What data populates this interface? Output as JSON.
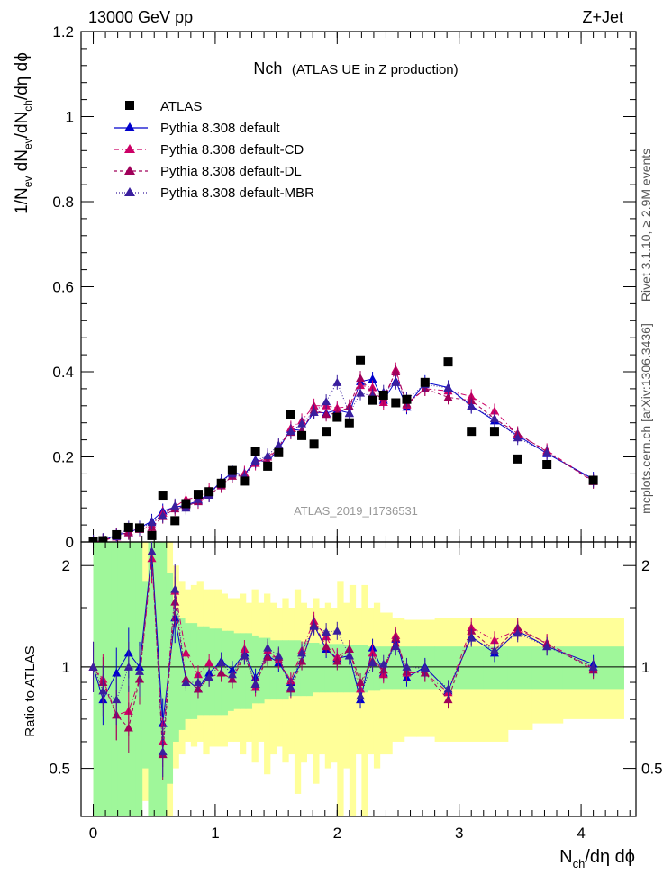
{
  "header": {
    "energy": "13000 GeV pp",
    "process": "Z+Jet",
    "side_rivet": "Rivet 3.1.10, ≥ 2.9M events",
    "side_mcplots": "mcplots.cern.ch [arXiv:1306.3436]",
    "watermark": "ATLAS_2019_I1736531"
  },
  "main_title": {
    "main": "Nch",
    "sub": "(ATLAS UE in Z production)"
  },
  "axes": {
    "ylabel_main": "1/N_ev dN_ev/dN_ch/dη dϕ",
    "ylabel_ratio": "Ratio to ATLAS",
    "xlabel": "N_ch/dη dϕ"
  },
  "legend": [
    "ATLAS",
    "Pythia 8.308 default",
    "Pythia 8.308 default-CD",
    "Pythia 8.308 default-DL",
    "Pythia 8.308 default-MBR"
  ],
  "colors": {
    "data": "#000000",
    "default": "#0000cc",
    "cd": "#cc0066",
    "dl": "#a0005a",
    "mbr": "#3a1f9e",
    "band_inner": "#9ff79a",
    "band_outer": "#ffff99"
  },
  "chart_data": [
    {
      "type": "scatter",
      "title": "Nch",
      "xlim": [
        -0.1,
        4.45
      ],
      "ylim": [
        0,
        1.2
      ],
      "yticks": [
        0,
        0.2,
        0.4,
        0.6,
        0.8,
        1,
        1.2
      ],
      "ytick_labels": [
        "0",
        "0.2",
        "0.4",
        "0.6",
        "0.8",
        "1",
        "1.2"
      ],
      "x": [
        0,
        0.08,
        0.19,
        0.29,
        0.38,
        0.48,
        0.57,
        0.67,
        0.76,
        0.86,
        0.95,
        1.05,
        1.14,
        1.24,
        1.33,
        1.43,
        1.52,
        1.62,
        1.71,
        1.81,
        1.91,
        2.0,
        2.1,
        2.19,
        2.29,
        2.38,
        2.48,
        2.57,
        2.72,
        2.91,
        3.1,
        3.29,
        3.48,
        3.72,
        4.1
      ],
      "series": [
        {
          "name": "ATLAS",
          "values": [
            0,
            0.003,
            0.017,
            0.034,
            0.033,
            0.015,
            0.11,
            0.05,
            0.09,
            0.112,
            0.118,
            0.138,
            0.168,
            0.143,
            0.213,
            0.178,
            0.21,
            0.3,
            0.25,
            0.23,
            0.26,
            0.293,
            0.28,
            0.428,
            0.333,
            0.345,
            0.327,
            0.335,
            0.375,
            0.423,
            0.26,
            0.26,
            0.195,
            0.182,
            0.145
          ]
        },
        {
          "name": "Pythia 8.308 default",
          "values": [
            0,
            0.003,
            0.017,
            0.022,
            0.033,
            0.049,
            0.073,
            0.082,
            0.086,
            0.097,
            0.113,
            0.143,
            0.163,
            0.158,
            0.193,
            0.188,
            0.218,
            0.265,
            0.262,
            0.305,
            0.303,
            0.31,
            0.303,
            0.377,
            0.383,
            0.333,
            0.378,
            0.317,
            0.375,
            0.363,
            0.32,
            0.285,
            0.25,
            0.208,
            0.148
          ]
        },
        {
          "name": "Pythia 8.308 default-CD",
          "values": [
            0,
            0.003,
            0.012,
            0.025,
            0.03,
            0.04,
            0.068,
            0.083,
            0.1,
            0.105,
            0.122,
            0.133,
            0.155,
            0.162,
            0.185,
            0.2,
            0.22,
            0.268,
            0.285,
            0.32,
            0.32,
            0.315,
            0.318,
            0.368,
            0.363,
            0.328,
            0.405,
            0.322,
            0.36,
            0.355,
            0.342,
            0.308,
            0.252,
            0.215,
            0.143
          ]
        },
        {
          "name": "Pythia 8.308 default-DL",
          "values": [
            0,
            0.003,
            0.015,
            0.022,
            0.031,
            0.034,
            0.06,
            0.078,
            0.083,
            0.095,
            0.11,
            0.132,
            0.155,
            0.155,
            0.19,
            0.19,
            0.225,
            0.258,
            0.262,
            0.31,
            0.3,
            0.302,
            0.318,
            0.385,
            0.348,
            0.338,
            0.4,
            0.325,
            0.36,
            0.34,
            0.332,
            0.29,
            0.255,
            0.212,
            0.142
          ]
        },
        {
          "name": "Pythia 8.308 default-MBR",
          "values": [
            0,
            0.004,
            0.013,
            0.033,
            0.032,
            0.046,
            0.062,
            0.085,
            0.08,
            0.1,
            0.11,
            0.142,
            0.16,
            0.155,
            0.19,
            0.203,
            0.228,
            0.26,
            0.278,
            0.305,
            0.33,
            0.375,
            0.302,
            0.35,
            0.343,
            0.352,
            0.375,
            0.335,
            0.37,
            0.362,
            0.318,
            0.29,
            0.245,
            0.21,
            0.145
          ]
        }
      ]
    },
    {
      "type": "line",
      "ylabel": "Ratio to ATLAS",
      "ylim": [
        0.36,
        2.35
      ],
      "ytick_labels": [
        "0.5",
        "1",
        "2"
      ],
      "x_edges": [
        0,
        0.05,
        0.1,
        0.15,
        0.2,
        0.25,
        0.3,
        0.35,
        0.4,
        0.45,
        0.5,
        0.55,
        0.6,
        0.65,
        0.7,
        0.75,
        0.8,
        0.85,
        0.9,
        0.95,
        1.0,
        1.05,
        1.1,
        1.15,
        1.2,
        1.25,
        1.3,
        1.35,
        1.4,
        1.45,
        1.5,
        1.55,
        1.6,
        1.65,
        1.7,
        1.75,
        1.8,
        1.85,
        1.9,
        1.95,
        2.0,
        2.05,
        2.1,
        2.15,
        2.2,
        2.25,
        2.3,
        2.35,
        2.45,
        2.55,
        2.65,
        2.8,
        3.0,
        3.2,
        3.4,
        3.6,
        3.85,
        4.35
      ],
      "band_inner_lo": [
        0.36,
        0.36,
        0.36,
        0.36,
        0.36,
        0.36,
        0.36,
        0.36,
        0.5,
        0.36,
        0.36,
        0.36,
        0.45,
        0.6,
        0.65,
        0.7,
        0.7,
        0.72,
        0.72,
        0.72,
        0.72,
        0.72,
        0.74,
        0.75,
        0.75,
        0.75,
        0.78,
        0.78,
        0.8,
        0.8,
        0.8,
        0.8,
        0.82,
        0.82,
        0.82,
        0.82,
        0.84,
        0.84,
        0.84,
        0.84,
        0.84,
        0.84,
        0.84,
        0.84,
        0.84,
        0.85,
        0.85,
        0.86,
        0.86,
        0.86,
        0.86,
        0.86,
        0.86,
        0.86,
        0.86,
        0.86,
        0.86
      ],
      "band_inner_hi": [
        2.35,
        2.35,
        2.35,
        2.35,
        2.35,
        2.35,
        2.35,
        2.35,
        1.8,
        2.35,
        2.35,
        2.35,
        1.9,
        1.5,
        1.4,
        1.35,
        1.35,
        1.32,
        1.32,
        1.3,
        1.3,
        1.28,
        1.28,
        1.26,
        1.26,
        1.26,
        1.24,
        1.22,
        1.22,
        1.2,
        1.2,
        1.2,
        1.2,
        1.2,
        1.19,
        1.18,
        1.18,
        1.17,
        1.17,
        1.17,
        1.17,
        1.16,
        1.16,
        1.16,
        1.16,
        1.15,
        1.15,
        1.15,
        1.15,
        1.15,
        1.15,
        1.15,
        1.15,
        1.15,
        1.15,
        1.15,
        1.15
      ],
      "band_outer_lo": [
        0.36,
        0.36,
        0.36,
        0.36,
        0.36,
        0.36,
        0.36,
        0.36,
        0.4,
        0.36,
        0.36,
        0.36,
        0.36,
        0.5,
        0.55,
        0.6,
        0.58,
        0.6,
        0.55,
        0.58,
        0.58,
        0.58,
        0.6,
        0.6,
        0.55,
        0.6,
        0.52,
        0.6,
        0.48,
        0.55,
        0.58,
        0.52,
        0.55,
        0.42,
        0.52,
        0.55,
        0.45,
        0.55,
        0.5,
        0.52,
        0.36,
        0.5,
        0.36,
        0.55,
        0.36,
        0.55,
        0.5,
        0.55,
        0.6,
        0.62,
        0.62,
        0.6,
        0.6,
        0.6,
        0.65,
        0.68,
        0.7
      ],
      "band_outer_hi": [
        2.35,
        2.35,
        2.35,
        2.35,
        2.35,
        2.35,
        2.35,
        2.35,
        2.35,
        2.35,
        2.35,
        2.35,
        2.35,
        2.0,
        1.8,
        1.7,
        1.75,
        1.8,
        1.7,
        1.7,
        1.7,
        1.65,
        1.6,
        1.6,
        1.65,
        1.55,
        1.7,
        1.55,
        1.65,
        1.55,
        1.5,
        1.6,
        1.5,
        1.7,
        1.55,
        1.5,
        1.6,
        1.5,
        1.55,
        1.5,
        1.8,
        1.55,
        1.75,
        1.5,
        1.75,
        1.5,
        1.55,
        1.45,
        1.4,
        1.38,
        1.38,
        1.4,
        1.4,
        1.4,
        1.4,
        1.4,
        1.4
      ],
      "series": [
        {
          "name": "Pythia 8.308 default",
          "values": [
            1.0,
            0.8,
            0.96,
            1.1,
            1.0,
            2.2,
            0.68,
            1.4,
            0.92,
            0.86,
            0.96,
            1.04,
            0.98,
            1.1,
            0.93,
            1.08,
            1.03,
            0.9,
            1.04,
            1.33,
            1.13,
            1.06,
            1.08,
            0.8,
            1.14,
            0.96,
            1.21,
            0.93,
            1.0,
            0.85,
            1.23,
            1.1,
            1.28,
            1.15,
            1.02
          ]
        },
        {
          "name": "Pythia 8.308 default-CD",
          "values": [
            1.0,
            0.92,
            0.72,
            0.74,
            0.92,
            2.1,
            0.6,
            1.68,
            1.1,
            0.95,
            1.03,
            0.96,
            0.92,
            1.13,
            0.87,
            1.12,
            1.05,
            0.91,
            1.12,
            1.37,
            1.23,
            1.07,
            1.13,
            0.86,
            1.1,
            0.95,
            1.24,
            0.96,
            0.96,
            0.84,
            1.31,
            1.2,
            1.29,
            1.18,
            0.99
          ]
        },
        {
          "name": "Pythia 8.308 default-DL",
          "values": [
            1.0,
            0.9,
            0.72,
            0.66,
            0.92,
            2.2,
            0.55,
            1.56,
            0.92,
            0.86,
            0.93,
            0.96,
            0.92,
            1.08,
            0.89,
            1.07,
            1.07,
            0.86,
            1.04,
            1.34,
            1.15,
            1.04,
            1.13,
            0.9,
            1.04,
            0.98,
            1.22,
            0.97,
            0.96,
            0.8,
            1.28,
            1.12,
            1.31,
            1.17,
            0.98
          ]
        },
        {
          "name": "Pythia 8.308 default-MBR",
          "values": [
            1.0,
            0.85,
            0.8,
            1.0,
            0.97,
            2.2,
            0.56,
            1.7,
            0.9,
            0.9,
            0.93,
            1.03,
            0.95,
            1.08,
            0.89,
            1.14,
            1.08,
            0.87,
            1.1,
            1.32,
            1.27,
            1.28,
            1.08,
            0.82,
            1.03,
            1.02,
            1.15,
            1.0,
            0.99,
            0.86,
            1.22,
            1.12,
            1.26,
            1.15,
            1.0
          ]
        }
      ]
    }
  ],
  "xaxis": {
    "ticks": [
      0,
      1,
      2,
      3,
      4
    ],
    "tick_labels": [
      "0",
      "1",
      "2",
      "3",
      "4"
    ]
  }
}
